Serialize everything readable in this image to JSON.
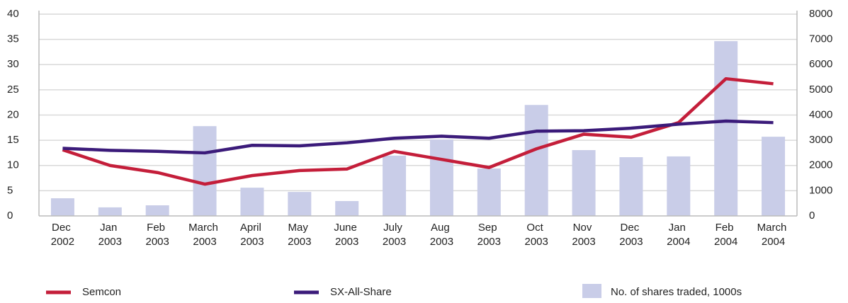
{
  "chart_data": {
    "type": "line",
    "categories": [
      "Dec 2002",
      "Jan 2003",
      "Feb 2003",
      "March 2003",
      "April 2003",
      "May 2003",
      "June 2003",
      "July 2003",
      "Aug 2003",
      "Sep 2003",
      "Oct 2003",
      "Nov 2003",
      "Dec 2003",
      "Jan 2004",
      "Feb 2004",
      "March 2004"
    ],
    "series": [
      {
        "name": "Semcon",
        "type": "line",
        "color": "#c41e3a",
        "values": [
          13.1,
          10,
          8.6,
          6.3,
          8,
          9,
          9.3,
          12.8,
          11.2,
          9.6,
          13.3,
          16.2,
          15.6,
          18.5,
          27.2,
          26.2
        ]
      },
      {
        "name": "SX-All-Share",
        "type": "line",
        "color": "#3b1b7a",
        "values": [
          13.4,
          13,
          12.8,
          12.5,
          14,
          13.9,
          14.5,
          15.4,
          15.8,
          15.4,
          16.8,
          16.9,
          17.4,
          18.2,
          18.8,
          18.5
        ]
      },
      {
        "name": "No. of shares traded, 1000s",
        "type": "bar",
        "axis": "y2",
        "color": "#c9cde8",
        "values": [
          700,
          340,
          420,
          3560,
          1120,
          950,
          590,
          2390,
          3030,
          1880,
          4400,
          2610,
          2330,
          2360,
          6930,
          3140
        ]
      }
    ],
    "ylim": [
      0,
      40
    ],
    "yticks": [
      0,
      5,
      10,
      15,
      20,
      25,
      30,
      35,
      40
    ],
    "y2lim": [
      0,
      8000
    ],
    "y2ticks": [
      0,
      1000,
      2000,
      3000,
      4000,
      5000,
      6000,
      7000,
      8000
    ],
    "grid": true,
    "legend": "bottom"
  }
}
